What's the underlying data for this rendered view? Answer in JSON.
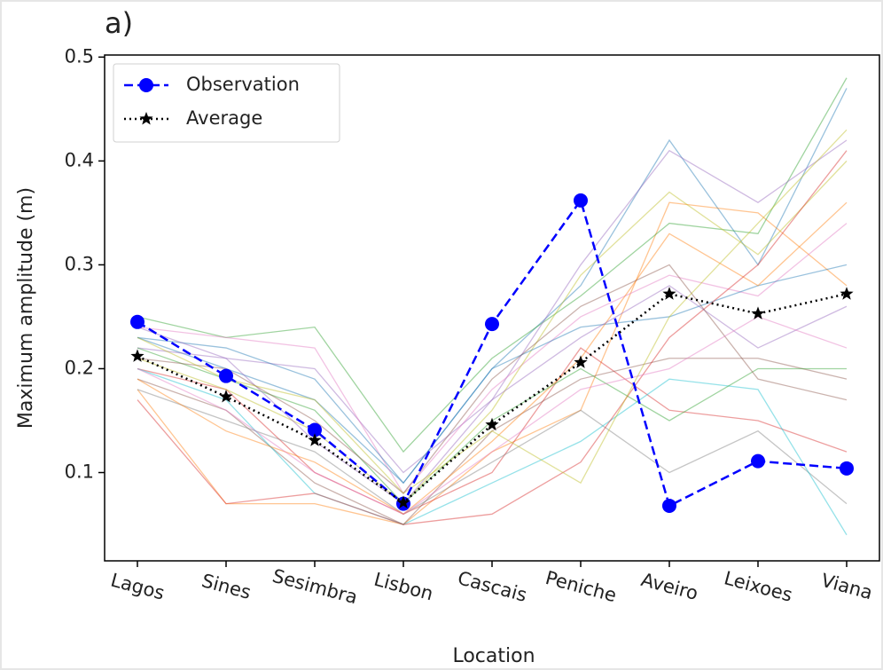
{
  "chart_data": {
    "type": "line",
    "title": "a)",
    "x_label": "Location",
    "y_label": "Maximum amplitude (m)",
    "categories": [
      "Lagos",
      "Sines",
      "Sesimbra",
      "Lisbon",
      "Cascais",
      "Peniche",
      "Aveiro",
      "Leixoes",
      "Viana"
    ],
    "ylim": [
      0.015,
      0.502
    ],
    "yticks": [
      0.1,
      0.2,
      0.3,
      0.4,
      0.5
    ],
    "legend": "upper left",
    "series": [
      {
        "name": "Observation",
        "color": "#0000ff",
        "values": [
          0.245,
          0.193,
          0.141,
          0.07,
          0.243,
          0.362,
          0.068,
          0.111,
          0.104
        ]
      },
      {
        "name": "Average",
        "color": "#000000",
        "values": [
          0.212,
          0.173,
          0.131,
          0.071,
          0.146,
          0.206,
          0.272,
          0.253,
          0.272
        ]
      }
    ],
    "ensemble": [
      {
        "color": "#1f77b4",
        "values": [
          0.23,
          0.2,
          0.17,
          0.09,
          0.2,
          0.28,
          0.42,
          0.3,
          0.47
        ]
      },
      {
        "color": "#ff7f0e",
        "values": [
          0.18,
          0.07,
          0.07,
          0.05,
          0.12,
          0.16,
          0.36,
          0.35,
          0.28
        ]
      },
      {
        "color": "#2ca02c",
        "values": [
          0.25,
          0.23,
          0.24,
          0.12,
          0.21,
          0.27,
          0.34,
          0.33,
          0.48
        ]
      },
      {
        "color": "#d62728",
        "values": [
          0.2,
          0.18,
          0.1,
          0.06,
          0.1,
          0.22,
          0.16,
          0.15,
          0.12
        ]
      },
      {
        "color": "#9467bd",
        "values": [
          0.22,
          0.21,
          0.2,
          0.1,
          0.17,
          0.3,
          0.41,
          0.36,
          0.42
        ]
      },
      {
        "color": "#8c564b",
        "values": [
          0.19,
          0.16,
          0.09,
          0.05,
          0.14,
          0.19,
          0.21,
          0.21,
          0.19
        ]
      },
      {
        "color": "#e377c2",
        "values": [
          0.24,
          0.23,
          0.22,
          0.08,
          0.18,
          0.25,
          0.29,
          0.27,
          0.34
        ]
      },
      {
        "color": "#7f7f7f",
        "values": [
          0.18,
          0.15,
          0.12,
          0.06,
          0.11,
          0.16,
          0.1,
          0.14,
          0.07
        ]
      },
      {
        "color": "#bcbd22",
        "values": [
          0.21,
          0.18,
          0.14,
          0.07,
          0.16,
          0.29,
          0.37,
          0.31,
          0.4
        ]
      },
      {
        "color": "#17becf",
        "values": [
          0.2,
          0.17,
          0.08,
          0.05,
          0.09,
          0.13,
          0.19,
          0.18,
          0.04
        ]
      },
      {
        "color": "#1f77b4",
        "values": [
          0.23,
          0.22,
          0.19,
          0.09,
          0.2,
          0.24,
          0.25,
          0.28,
          0.3
        ]
      },
      {
        "color": "#ff7f0e",
        "values": [
          0.19,
          0.14,
          0.11,
          0.06,
          0.13,
          0.21,
          0.33,
          0.28,
          0.36
        ]
      },
      {
        "color": "#2ca02c",
        "values": [
          0.22,
          0.19,
          0.16,
          0.07,
          0.15,
          0.2,
          0.15,
          0.2,
          0.2
        ]
      },
      {
        "color": "#d62728",
        "values": [
          0.17,
          0.07,
          0.08,
          0.05,
          0.06,
          0.11,
          0.23,
          0.3,
          0.41
        ]
      },
      {
        "color": "#9467bd",
        "values": [
          0.24,
          0.21,
          0.13,
          0.07,
          0.17,
          0.23,
          0.28,
          0.22,
          0.26
        ]
      },
      {
        "color": "#8c564b",
        "values": [
          0.21,
          0.2,
          0.15,
          0.08,
          0.19,
          0.26,
          0.3,
          0.19,
          0.17
        ]
      },
      {
        "color": "#e377c2",
        "values": [
          0.2,
          0.16,
          0.1,
          0.06,
          0.12,
          0.18,
          0.2,
          0.25,
          0.22
        ]
      },
      {
        "color": "#bcbd22",
        "values": [
          0.23,
          0.19,
          0.17,
          0.08,
          0.14,
          0.09,
          0.25,
          0.34,
          0.43
        ]
      }
    ]
  }
}
